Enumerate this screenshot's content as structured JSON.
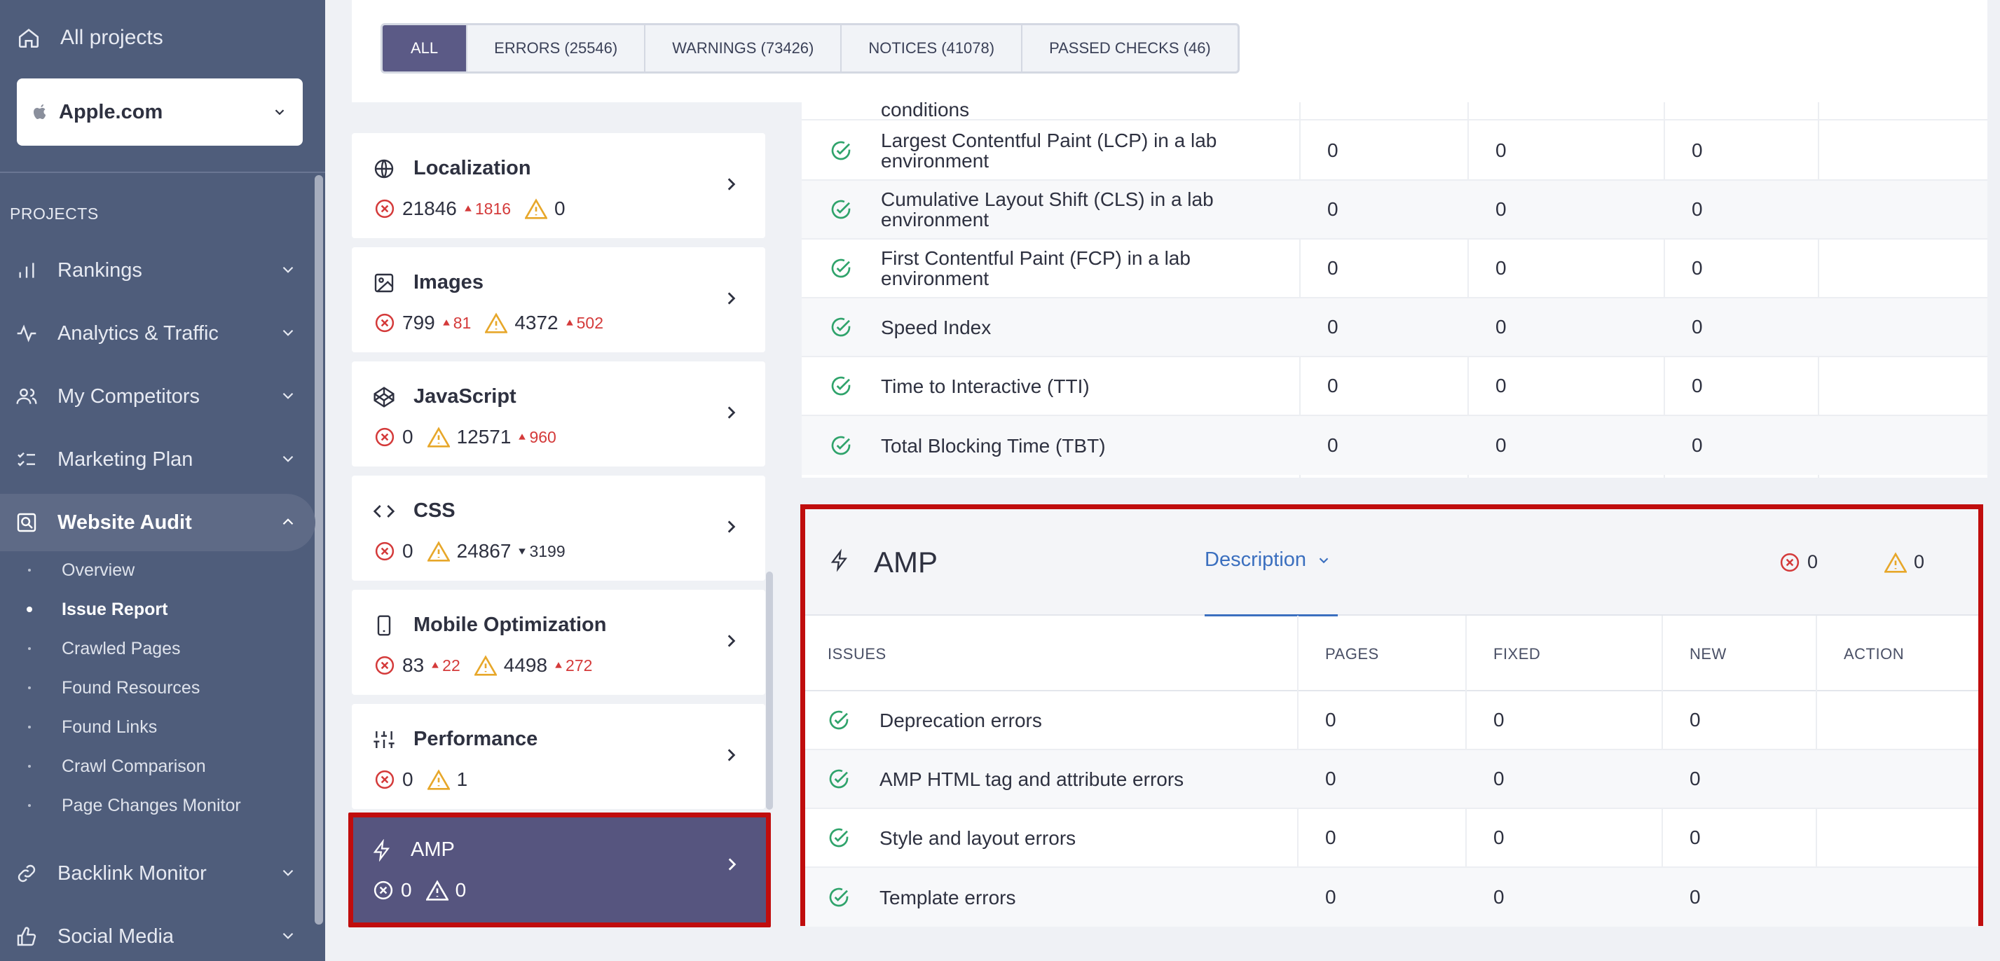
{
  "sidebar": {
    "all_projects": "All projects",
    "project": "Apple.com",
    "projects_label": "PROJECTS",
    "items": [
      {
        "label": "Rankings"
      },
      {
        "label": "Analytics & Traffic"
      },
      {
        "label": "My Competitors"
      },
      {
        "label": "Marketing Plan"
      },
      {
        "label": "Website Audit"
      },
      {
        "label": "Backlink Monitor"
      },
      {
        "label": "Social Media"
      }
    ],
    "audit_sub": [
      "Overview",
      "Issue Report",
      "Crawled Pages",
      "Found Resources",
      "Found Links",
      "Crawl Comparison",
      "Page Changes Monitor"
    ]
  },
  "tabs": [
    "ALL",
    "ERRORS (25546)",
    "WARNINGS (73426)",
    "NOTICES (41078)",
    "PASSED CHECKS (46)"
  ],
  "cards": [
    {
      "title": "Localization",
      "errors": "21846",
      "errors_delta": "1816",
      "warnings": "0",
      "warnings_delta": ""
    },
    {
      "title": "Images",
      "errors": "799",
      "errors_delta": "81",
      "warnings": "4372",
      "warnings_delta": "502"
    },
    {
      "title": "JavaScript",
      "errors": "0",
      "errors_delta": "",
      "warnings": "12571",
      "warnings_delta": "960"
    },
    {
      "title": "CSS",
      "errors": "0",
      "errors_delta": "",
      "warnings": "24867",
      "warnings_delta": "3199"
    },
    {
      "title": "Mobile Optimization",
      "errors": "83",
      "errors_delta": "22",
      "warnings": "4498",
      "warnings_delta": "272"
    },
    {
      "title": "Performance",
      "errors": "0",
      "errors_delta": "",
      "warnings": "1",
      "warnings_delta": ""
    },
    {
      "title": "AMP",
      "errors": "0",
      "errors_delta": "",
      "warnings": "0",
      "warnings_delta": ""
    }
  ],
  "perf_rows": [
    {
      "name": "conditions",
      "pages": "",
      "fixed": "",
      "new": ""
    },
    {
      "name": "Largest Contentful Paint (LCP) in a lab environment",
      "pages": "0",
      "fixed": "0",
      "new": "0"
    },
    {
      "name": "Cumulative Layout Shift (CLS) in a lab environment",
      "pages": "0",
      "fixed": "0",
      "new": "0"
    },
    {
      "name": "First Contentful Paint (FCP) in a lab environment",
      "pages": "0",
      "fixed": "0",
      "new": "0"
    },
    {
      "name": "Speed Index",
      "pages": "0",
      "fixed": "0",
      "new": "0"
    },
    {
      "name": "Time to Interactive (TTI)",
      "pages": "0",
      "fixed": "0",
      "new": "0"
    },
    {
      "name": "Total Blocking Time (TBT)",
      "pages": "0",
      "fixed": "0",
      "new": "0"
    }
  ],
  "amp": {
    "title": "AMP",
    "description": "Description",
    "errors": "0",
    "warnings": "0",
    "columns": [
      "ISSUES",
      "PAGES",
      "FIXED",
      "NEW",
      "ACTION"
    ],
    "rows": [
      {
        "name": "Deprecation errors",
        "pages": "0",
        "fixed": "0",
        "new": "0"
      },
      {
        "name": "AMP HTML tag and attribute errors",
        "pages": "0",
        "fixed": "0",
        "new": "0"
      },
      {
        "name": "Style and layout errors",
        "pages": "0",
        "fixed": "0",
        "new": "0"
      },
      {
        "name": "Template errors",
        "pages": "0",
        "fixed": "0",
        "new": "0"
      }
    ]
  },
  "colors": {
    "sidebar": "#4f5d7b",
    "accent": "#5b5a86",
    "error": "#d43a3a",
    "warning": "#e7a72a",
    "pass": "#2fa36b",
    "highlight": "#c00d0d",
    "link": "#3b6fbf"
  }
}
